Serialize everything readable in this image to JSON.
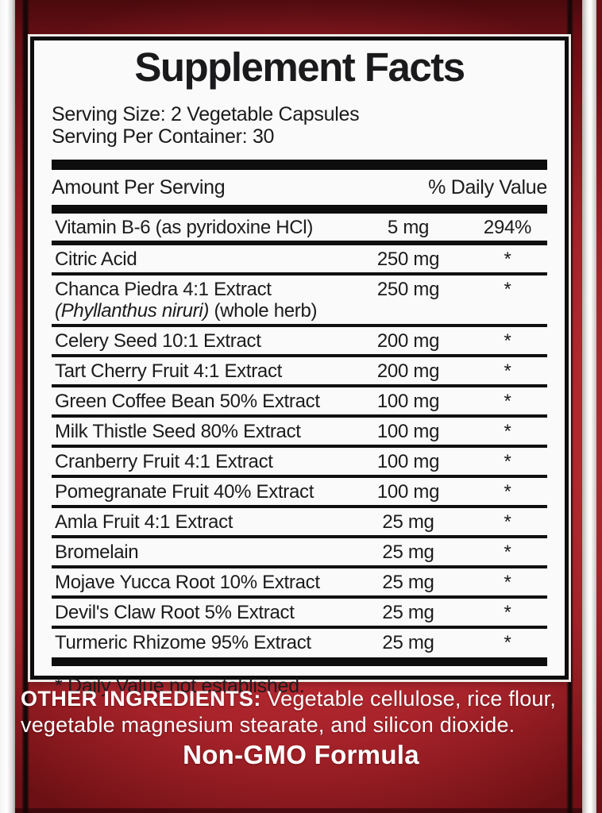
{
  "label": {
    "title": "Supplement Facts",
    "serving_size": "Serving Size: 2 Vegetable Capsules",
    "servings_per_container": "Serving Per Container: 30",
    "header": {
      "amount_col": "Amount Per Serving",
      "dv_col": "% Daily Value"
    },
    "rows": [
      {
        "name": "Vitamin B-6 (as pyridoxine HCl)",
        "amount": "5 mg",
        "dv": "294%",
        "thick_sep": true
      },
      {
        "name": "Citric Acid",
        "amount": "250 mg",
        "dv": "*"
      },
      {
        "name": "Chanca Piedra 4:1 Extract",
        "latin": "(Phyllanthus niruri)",
        "note": " (whole herb)",
        "amount": "250 mg",
        "dv": "*"
      },
      {
        "name": "Celery Seed 10:1 Extract",
        "amount": "200 mg",
        "dv": "*"
      },
      {
        "name": "Tart Cherry Fruit 4:1 Extract",
        "amount": "200 mg",
        "dv": "*"
      },
      {
        "name": "Green Coffee Bean 50% Extract",
        "amount": "100 mg",
        "dv": "*"
      },
      {
        "name": "Milk Thistle Seed 80% Extract",
        "amount": "100 mg",
        "dv": "*"
      },
      {
        "name": "Cranberry Fruit 4:1 Extract",
        "amount": "100 mg",
        "dv": "*"
      },
      {
        "name": "Pomegranate Fruit 40% Extract",
        "amount": "100 mg",
        "dv": "*"
      },
      {
        "name": "Amla Fruit 4:1 Extract",
        "amount": "25 mg",
        "dv": "*"
      },
      {
        "name": "Bromelain",
        "amount": "25 mg",
        "dv": "*"
      },
      {
        "name": "Mojave Yucca Root 10% Extract",
        "amount": "25 mg",
        "dv": "*"
      },
      {
        "name": "Devil's Claw Root 5% Extract",
        "amount": "25 mg",
        "dv": "*"
      },
      {
        "name": "Turmeric Rhizome 95% Extract",
        "amount": "25 mg",
        "dv": "*",
        "last": true
      }
    ],
    "footnote": "* Daily Value not established."
  },
  "footer": {
    "other_ingredients_label": "OTHER INGREDIENTS:",
    "other_ingredients_text": " Vegetable cellulose, rice flour, vegetable magnesium stearate, and silicon dioxide.",
    "non_gmo": "Non-GMO Formula"
  },
  "colors": {
    "red_center": "#c9343c",
    "red_main": "#c12d35",
    "red_dark": "#7c151a",
    "ink_black": "#0d0d0d",
    "panel_bg": "#fafafa",
    "text_white": "#ffffff",
    "edge_silver": "#f4f4f4"
  }
}
